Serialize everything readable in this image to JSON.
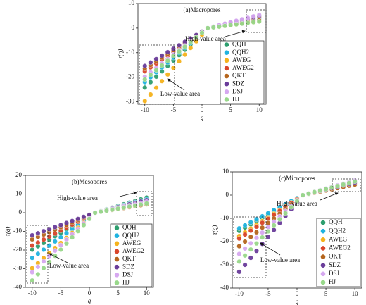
{
  "chart_data": [
    {
      "type": "scatter",
      "title": "(a)Macropores",
      "xlabel": "q",
      "ylabel": "τ(q)",
      "x": [
        -10,
        -9,
        -8,
        -7,
        -6,
        -5,
        -4,
        -3,
        -2,
        -1,
        0,
        1,
        2,
        3,
        4,
        5,
        6,
        7,
        8,
        9,
        10
      ],
      "xlim": [
        -11.2,
        11.2
      ],
      "ylim": [
        -31,
        10
      ],
      "xticks": [
        -10,
        -5,
        0,
        5,
        10
      ],
      "yticks": [
        -30,
        -20,
        -10,
        0,
        10
      ],
      "legend": "lower right",
      "annotations": [
        "High-value area",
        "Low-value area"
      ],
      "series": [
        {
          "name": "QQH",
          "color": "#2e9e6e",
          "values": [
            -24.2,
            -22,
            -19.8,
            -17.6,
            -15.4,
            -13.2,
            -11,
            -8.8,
            -6.6,
            -4.4,
            -2.2,
            0,
            0.4,
            0.8,
            1.2,
            1.6,
            2,
            2.4,
            2.8,
            3.2,
            3.6
          ]
        },
        {
          "name": "QQH2",
          "color": "#1fb3e0",
          "values": [
            -22,
            -20,
            -18,
            -16,
            -14,
            -12,
            -10,
            -8,
            -6,
            -4,
            -2,
            0,
            0.45,
            0.9,
            1.35,
            1.8,
            2.25,
            2.7,
            3.15,
            3.6,
            4.05
          ]
        },
        {
          "name": "AWEG",
          "color": "#f5b21b",
          "values": [
            -29.7,
            -27,
            -24.3,
            -21.6,
            -18.9,
            -16.2,
            -13.5,
            -10.8,
            -8.1,
            -5.4,
            -2.7,
            0,
            0.3,
            0.6,
            0.9,
            1.2,
            1.5,
            1.8,
            2.1,
            2.4,
            2.7
          ]
        },
        {
          "name": "AWEG2",
          "color": "#d9452b",
          "values": [
            -17.6,
            -16,
            -14.4,
            -12.8,
            -11.2,
            -9.6,
            -8,
            -6.4,
            -4.8,
            -3.2,
            -1.6,
            0,
            0.5,
            1,
            1.5,
            2,
            2.5,
            3,
            3.5,
            4,
            4.5
          ]
        },
        {
          "name": "QKT",
          "color": "#b5651d",
          "values": [
            -16.5,
            -15,
            -13.5,
            -12,
            -10.5,
            -9,
            -7.5,
            -6,
            -4.5,
            -3,
            -1.5,
            0,
            0.35,
            0.7,
            1.05,
            1.4,
            1.75,
            2.1,
            2.45,
            2.8,
            3.15
          ]
        },
        {
          "name": "SDZ",
          "color": "#6a3d9a",
          "values": [
            -15.4,
            -14,
            -12.6,
            -11.2,
            -9.8,
            -8.4,
            -7,
            -5.6,
            -4.2,
            -2.8,
            -1.4,
            0,
            0.55,
            1.1,
            1.65,
            2.2,
            2.75,
            3.3,
            3.85,
            4.4,
            4.95
          ]
        },
        {
          "name": "DSJ",
          "color": "#d6a8f0",
          "values": [
            -19.8,
            -18,
            -16.2,
            -14.4,
            -12.6,
            -10.8,
            -9,
            -7.2,
            -5.4,
            -3.6,
            -1.8,
            0,
            0.6,
            1.2,
            1.8,
            2.4,
            3,
            3.6,
            4.2,
            4.8,
            5.4
          ]
        },
        {
          "name": "HJ",
          "color": "#98d88a",
          "values": [
            -20.9,
            -19,
            -17.1,
            -15.2,
            -13.3,
            -11.4,
            -9.5,
            -7.6,
            -5.7,
            -3.8,
            -1.9,
            0,
            0.3,
            0.6,
            0.9,
            1.2,
            1.5,
            1.8,
            2.1,
            2.4,
            2.7
          ]
        }
      ]
    },
    {
      "type": "scatter",
      "title": "(b)Mesopores",
      "xlabel": "q",
      "ylabel": "τ(q)",
      "x": [
        -10,
        -9,
        -8,
        -7,
        -6,
        -5,
        -4,
        -3,
        -2,
        -1,
        0,
        1,
        2,
        3,
        4,
        5,
        6,
        7,
        8,
        9,
        10
      ],
      "xlim": [
        -11.2,
        11.2
      ],
      "ylim": [
        -40,
        20
      ],
      "xticks": [
        -10,
        -5,
        0,
        5,
        10
      ],
      "yticks": [
        -40,
        -30,
        -20,
        -10,
        0,
        10,
        20
      ],
      "legend": "lower right",
      "annotations": [
        "High-value area",
        "Low-value area"
      ],
      "series": [
        {
          "name": "QQH",
          "color": "#2e9e6e",
          "values": [
            -19.8,
            -18,
            -16.2,
            -14.4,
            -12.6,
            -10.8,
            -9,
            -7.2,
            -5.4,
            -3.6,
            -1.8,
            0,
            0.9,
            1.8,
            2.7,
            3.6,
            4.5,
            5.4,
            6.3,
            7.2,
            8.1
          ]
        },
        {
          "name": "QQH2",
          "color": "#1fb3e0",
          "values": [
            -24.2,
            -22,
            -19.8,
            -17.6,
            -15.4,
            -13.2,
            -11,
            -8.8,
            -6.6,
            -4.4,
            -2.2,
            0,
            0.8,
            1.6,
            2.4,
            3.2,
            4,
            4.8,
            5.6,
            6.4,
            7.2
          ]
        },
        {
          "name": "AWEG",
          "color": "#f5b21b",
          "values": [
            -29.7,
            -27,
            -24.3,
            -21.6,
            -18.9,
            -16.2,
            -13.5,
            -10.8,
            -8.1,
            -5.4,
            -2.7,
            0,
            0.6,
            1.2,
            1.8,
            2.4,
            3,
            3.6,
            4.2,
            4.8,
            5.4
          ]
        },
        {
          "name": "AWEG2",
          "color": "#d9452b",
          "values": [
            -17.6,
            -16,
            -14.4,
            -12.8,
            -11.2,
            -9.6,
            -8,
            -6.4,
            -4.8,
            -3.2,
            -1.6,
            0,
            0.7,
            1.4,
            2.1,
            2.8,
            3.5,
            4.2,
            4.9,
            5.6,
            6.3
          ]
        },
        {
          "name": "QKT",
          "color": "#b5651d",
          "values": [
            -14.3,
            -13,
            -11.7,
            -10.4,
            -9.1,
            -7.8,
            -6.5,
            -5.2,
            -3.9,
            -2.6,
            -1.3,
            0,
            0.5,
            1,
            1.5,
            2,
            2.5,
            3,
            3.5,
            4,
            4.5
          ]
        },
        {
          "name": "SDZ",
          "color": "#6a3d9a",
          "values": [
            -12.1,
            -11,
            -9.9,
            -8.8,
            -7.7,
            -6.6,
            -5.5,
            -4.4,
            -3.3,
            -2.2,
            -1.1,
            0,
            0.75,
            1.5,
            2.25,
            3,
            3.75,
            4.5,
            5.25,
            6,
            6.75
          ]
        },
        {
          "name": "DSJ",
          "color": "#d6a8f0",
          "values": [
            -31.9,
            -29,
            -26.1,
            -23.2,
            -20.3,
            -17.4,
            -14.5,
            -11.6,
            -8.7,
            -5.8,
            -2.9,
            0,
            0.65,
            1.3,
            1.95,
            2.6,
            3.25,
            3.9,
            4.55,
            5.2,
            5.85
          ]
        },
        {
          "name": "HJ",
          "color": "#98d88a",
          "values": [
            -36.3,
            -33,
            -29.7,
            -26.4,
            -23.1,
            -19.8,
            -16.5,
            -13.2,
            -9.9,
            -6.6,
            -3.3,
            0,
            0.55,
            1.1,
            1.65,
            2.2,
            2.75,
            3.3,
            3.85,
            4.4,
            4.95
          ]
        }
      ]
    },
    {
      "type": "scatter",
      "title": "(c)Micropores",
      "xlabel": "q",
      "ylabel": "τ(q)",
      "x": [
        -10,
        -9,
        -8,
        -7,
        -6,
        -5,
        -4,
        -3,
        -2,
        -1,
        0,
        1,
        2,
        3,
        4,
        5,
        6,
        7,
        8,
        9,
        10
      ],
      "xlim": [
        -11.2,
        11.2
      ],
      "ylim": [
        -40,
        10
      ],
      "xticks": [
        -10,
        -5,
        0,
        5,
        10
      ],
      "yticks": [
        -40,
        -30,
        -20,
        -10,
        0,
        10
      ],
      "legend": "lower right",
      "annotations": [
        "High-value area",
        "Low-value area"
      ],
      "series": [
        {
          "name": "QQH",
          "color": "#2e9e6e",
          "values": [
            -15.4,
            -14,
            -12.6,
            -11.2,
            -9.8,
            -8.4,
            -7,
            -5.6,
            -4.2,
            -2.8,
            -1.4,
            0,
            0.7,
            1.4,
            2.1,
            2.8,
            3.5,
            4.2,
            4.9,
            5.6,
            6.3
          ]
        },
        {
          "name": "QQH2",
          "color": "#1fb3e0",
          "values": [
            -14.3,
            -13,
            -11.7,
            -10.4,
            -9.1,
            -7.8,
            -6.5,
            -5.2,
            -3.9,
            -2.6,
            -1.3,
            0,
            0.65,
            1.3,
            1.95,
            2.6,
            3.25,
            3.9,
            4.55,
            5.2,
            5.85
          ]
        },
        {
          "name": "AWEG",
          "color": "#f5b21b",
          "values": [
            -17.6,
            -16,
            -14.4,
            -12.8,
            -11.2,
            -9.6,
            -8,
            -6.4,
            -4.8,
            -3.2,
            -1.6,
            0,
            0.6,
            1.2,
            1.8,
            2.4,
            3,
            3.6,
            4.2,
            4.8,
            5.4
          ]
        },
        {
          "name": "AWEG2",
          "color": "#d9452b",
          "values": [
            -18.7,
            -17,
            -15.3,
            -13.6,
            -11.9,
            -10.2,
            -8.5,
            -6.8,
            -5.1,
            -3.4,
            -1.7,
            0,
            0.55,
            1.1,
            1.65,
            2.2,
            2.75,
            3.3,
            3.85,
            4.4,
            4.95
          ]
        },
        {
          "name": "QKT",
          "color": "#b5651d",
          "values": [
            -22,
            -20,
            -18,
            -16,
            -14,
            -12,
            -10,
            -8,
            -6,
            -4,
            -2,
            0,
            0.5,
            1,
            1.5,
            2,
            2.5,
            3,
            3.5,
            4,
            4.5
          ]
        },
        {
          "name": "SDZ",
          "color": "#6a3d9a",
          "values": [
            -33,
            -30,
            -27,
            -24,
            -21,
            -18,
            -15,
            -12,
            -9,
            -6,
            -3,
            0,
            0.6,
            1.2,
            1.8,
            2.4,
            3,
            3.6,
            4.2,
            4.8,
            5.4
          ]
        },
        {
          "name": "DSJ",
          "color": "#d6a8f0",
          "values": [
            -25.3,
            -23,
            -20.7,
            -18.4,
            -16.1,
            -13.8,
            -11.5,
            -9.2,
            -6.9,
            -4.6,
            -2.3,
            0,
            0.7,
            1.4,
            2.1,
            2.8,
            3.5,
            4.2,
            4.9,
            5.6,
            6.3
          ]
        },
        {
          "name": "HJ",
          "color": "#98d88a",
          "values": [
            -28.6,
            -26,
            -23.4,
            -20.8,
            -18.2,
            -15.6,
            -13,
            -10.4,
            -7.8,
            -5.2,
            -2.6,
            0,
            0.65,
            1.3,
            1.95,
            2.6,
            3.25,
            3.9,
            4.55,
            5.2,
            5.85
          ]
        }
      ]
    }
  ]
}
